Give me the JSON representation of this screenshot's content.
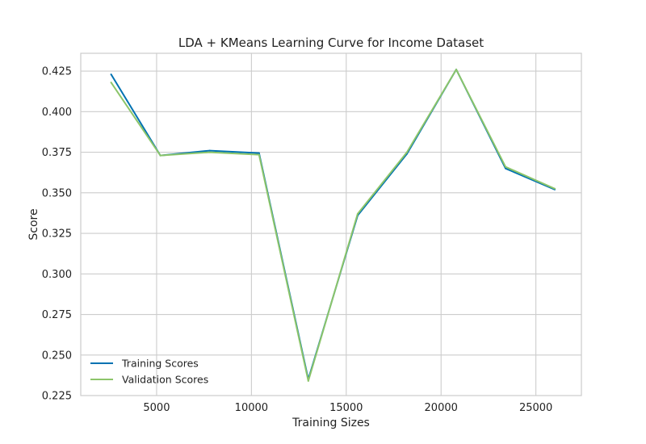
{
  "chart_data": {
    "type": "line",
    "title": "LDA + KMeans Learning Curve for Income Dataset",
    "xlabel": "Training Sizes",
    "ylabel": "Score",
    "xlim": [
      1000,
      27400
    ],
    "ylim": [
      0.225,
      0.436
    ],
    "xticks": [
      5000,
      10000,
      15000,
      20000,
      25000
    ],
    "xtick_labels": [
      "5000",
      "10000",
      "15000",
      "20000",
      "25000"
    ],
    "yticks": [
      0.225,
      0.25,
      0.275,
      0.3,
      0.325,
      0.35,
      0.375,
      0.4,
      0.425
    ],
    "ytick_labels": [
      "0.225",
      "0.250",
      "0.275",
      "0.300",
      "0.325",
      "0.350",
      "0.375",
      "0.400",
      "0.425"
    ],
    "grid": true,
    "legend_position": "lower-left",
    "x": [
      2600,
      5200,
      7800,
      10400,
      13000,
      15600,
      18200,
      20800,
      23400,
      26000
    ],
    "series": [
      {
        "name": "Training Scores",
        "color": "#0072b2",
        "values": [
          0.423,
          0.373,
          0.376,
          0.3745,
          0.235,
          0.336,
          0.374,
          0.426,
          0.365,
          0.352
        ]
      },
      {
        "name": "Validation Scores",
        "color": "#8cc56a",
        "values": [
          0.418,
          0.373,
          0.375,
          0.3735,
          0.234,
          0.337,
          0.375,
          0.426,
          0.366,
          0.3525
        ]
      }
    ]
  }
}
